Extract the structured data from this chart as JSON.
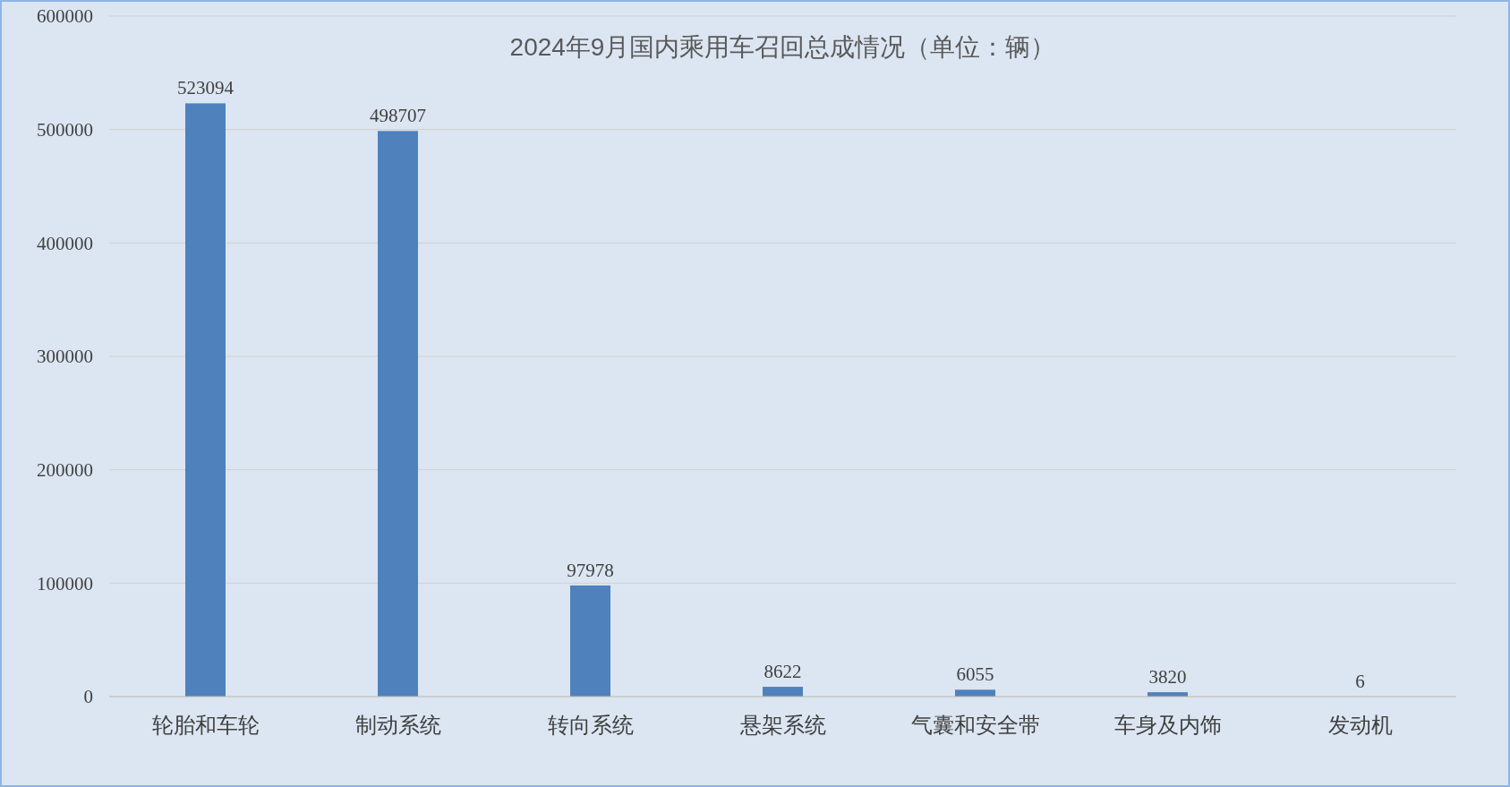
{
  "chart_data": {
    "type": "bar",
    "title": "2024年9月国内乘用车召回总成情况（单位：辆）",
    "categories": [
      "轮胎和车轮",
      "制动系统",
      "转向系统",
      "悬架系统",
      "气囊和安全带",
      "车身及内饰",
      "发动机"
    ],
    "values": [
      523094,
      498707,
      97978,
      8622,
      6055,
      3820,
      6
    ],
    "color": "#4f81bd",
    "ylim": [
      0,
      600000
    ],
    "yticks": [
      0,
      100000,
      200000,
      300000,
      400000,
      500000,
      600000
    ],
    "grid": "y",
    "data_labels": true
  }
}
